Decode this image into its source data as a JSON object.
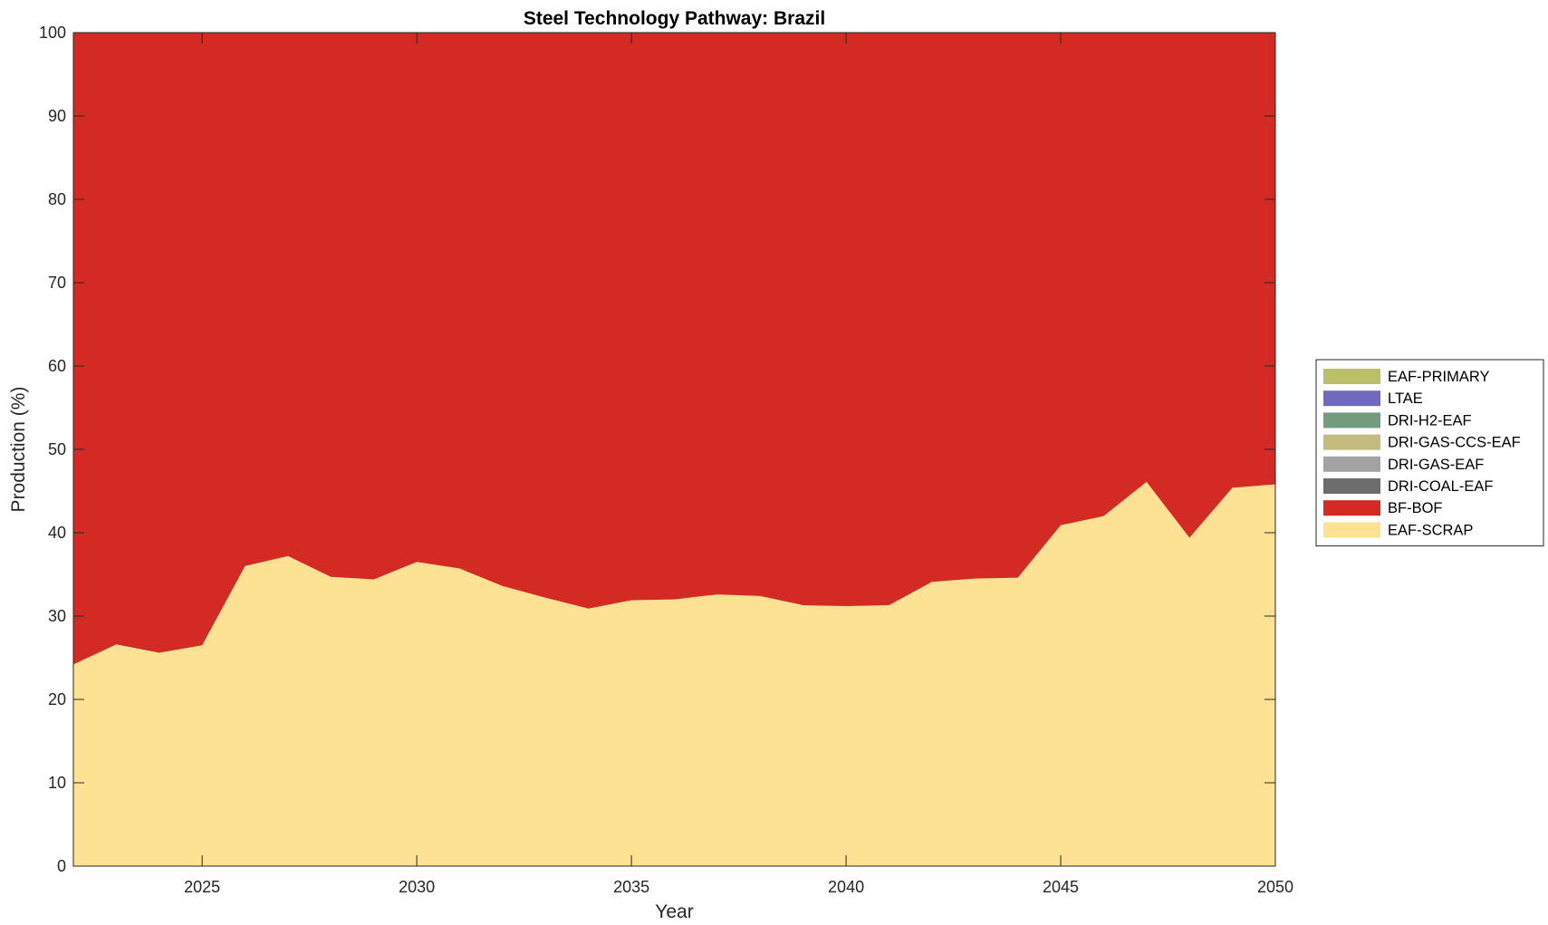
{
  "chart_data": {
    "type": "area",
    "stacked": true,
    "title": "Steel Technology Pathway: Brazil",
    "xlabel": "Year",
    "ylabel": "Production (%)",
    "xlim": [
      2022,
      2050
    ],
    "ylim": [
      0,
      100
    ],
    "xticks": [
      2025,
      2030,
      2035,
      2040,
      2045,
      2050
    ],
    "yticks": [
      0,
      10,
      20,
      30,
      40,
      50,
      60,
      70,
      80,
      90,
      100
    ],
    "grid": false,
    "legend_position": "right",
    "x": [
      2022,
      2023,
      2024,
      2025,
      2026,
      2027,
      2028,
      2029,
      2030,
      2031,
      2032,
      2033,
      2034,
      2035,
      2036,
      2037,
      2038,
      2039,
      2040,
      2041,
      2042,
      2043,
      2044,
      2045,
      2046,
      2047,
      2048,
      2049,
      2050
    ],
    "series": [
      {
        "name": "EAF-SCRAP",
        "color": "#FDE293",
        "values": [
          24.2,
          26.6,
          25.6,
          26.5,
          36.0,
          37.2,
          34.7,
          34.4,
          36.5,
          35.7,
          33.6,
          32.2,
          30.9,
          31.9,
          32.0,
          32.6,
          32.4,
          31.3,
          31.2,
          31.3,
          34.1,
          34.5,
          34.6,
          40.9,
          42.0,
          46.1,
          39.4,
          45.4,
          45.8
        ]
      },
      {
        "name": "BF-BOF",
        "color": "#D32A24",
        "values": [
          75.8,
          73.4,
          74.4,
          73.5,
          64.0,
          62.8,
          65.3,
          65.6,
          63.5,
          64.3,
          66.4,
          67.8,
          69.1,
          68.1,
          68.0,
          67.4,
          67.6,
          68.7,
          68.8,
          68.7,
          65.9,
          65.5,
          65.4,
          59.1,
          58.0,
          53.9,
          60.6,
          54.6,
          54.2
        ]
      },
      {
        "name": "DRI-COAL-EAF",
        "color": "#6D6D6D",
        "values": [
          0,
          0,
          0,
          0,
          0,
          0,
          0,
          0,
          0,
          0,
          0,
          0,
          0,
          0,
          0,
          0,
          0,
          0,
          0,
          0,
          0,
          0,
          0,
          0,
          0,
          0,
          0,
          0,
          0
        ]
      },
      {
        "name": "DRI-GAS-EAF",
        "color": "#A3A3A3",
        "values": [
          0,
          0,
          0,
          0,
          0,
          0,
          0,
          0,
          0,
          0,
          0,
          0,
          0,
          0,
          0,
          0,
          0,
          0,
          0,
          0,
          0,
          0,
          0,
          0,
          0,
          0,
          0,
          0,
          0
        ]
      },
      {
        "name": "DRI-GAS-CCS-EAF",
        "color": "#C4BC7F",
        "values": [
          0,
          0,
          0,
          0,
          0,
          0,
          0,
          0,
          0,
          0,
          0,
          0,
          0,
          0,
          0,
          0,
          0,
          0,
          0,
          0,
          0,
          0,
          0,
          0,
          0,
          0,
          0,
          0,
          0
        ]
      },
      {
        "name": "DRI-H2-EAF",
        "color": "#739B7D",
        "values": [
          0,
          0,
          0,
          0,
          0,
          0,
          0,
          0,
          0,
          0,
          0,
          0,
          0,
          0,
          0,
          0,
          0,
          0,
          0,
          0,
          0,
          0,
          0,
          0,
          0,
          0,
          0,
          0,
          0
        ]
      },
      {
        "name": "LTAE",
        "color": "#7268BE",
        "values": [
          0,
          0,
          0,
          0,
          0,
          0,
          0,
          0,
          0,
          0,
          0,
          0,
          0,
          0,
          0,
          0,
          0,
          0,
          0,
          0,
          0,
          0,
          0,
          0,
          0,
          0,
          0,
          0,
          0
        ]
      },
      {
        "name": "EAF-PRIMARY",
        "color": "#BAC06A",
        "values": [
          0,
          0,
          0,
          0,
          0,
          0,
          0,
          0,
          0,
          0,
          0,
          0,
          0,
          0,
          0,
          0,
          0,
          0,
          0,
          0,
          0,
          0,
          0,
          0,
          0,
          0,
          0,
          0,
          0
        ]
      }
    ],
    "legend_order": [
      "EAF-PRIMARY",
      "LTAE",
      "DRI-H2-EAF",
      "DRI-GAS-CCS-EAF",
      "DRI-GAS-EAF",
      "DRI-COAL-EAF",
      "BF-BOF",
      "EAF-SCRAP"
    ]
  }
}
